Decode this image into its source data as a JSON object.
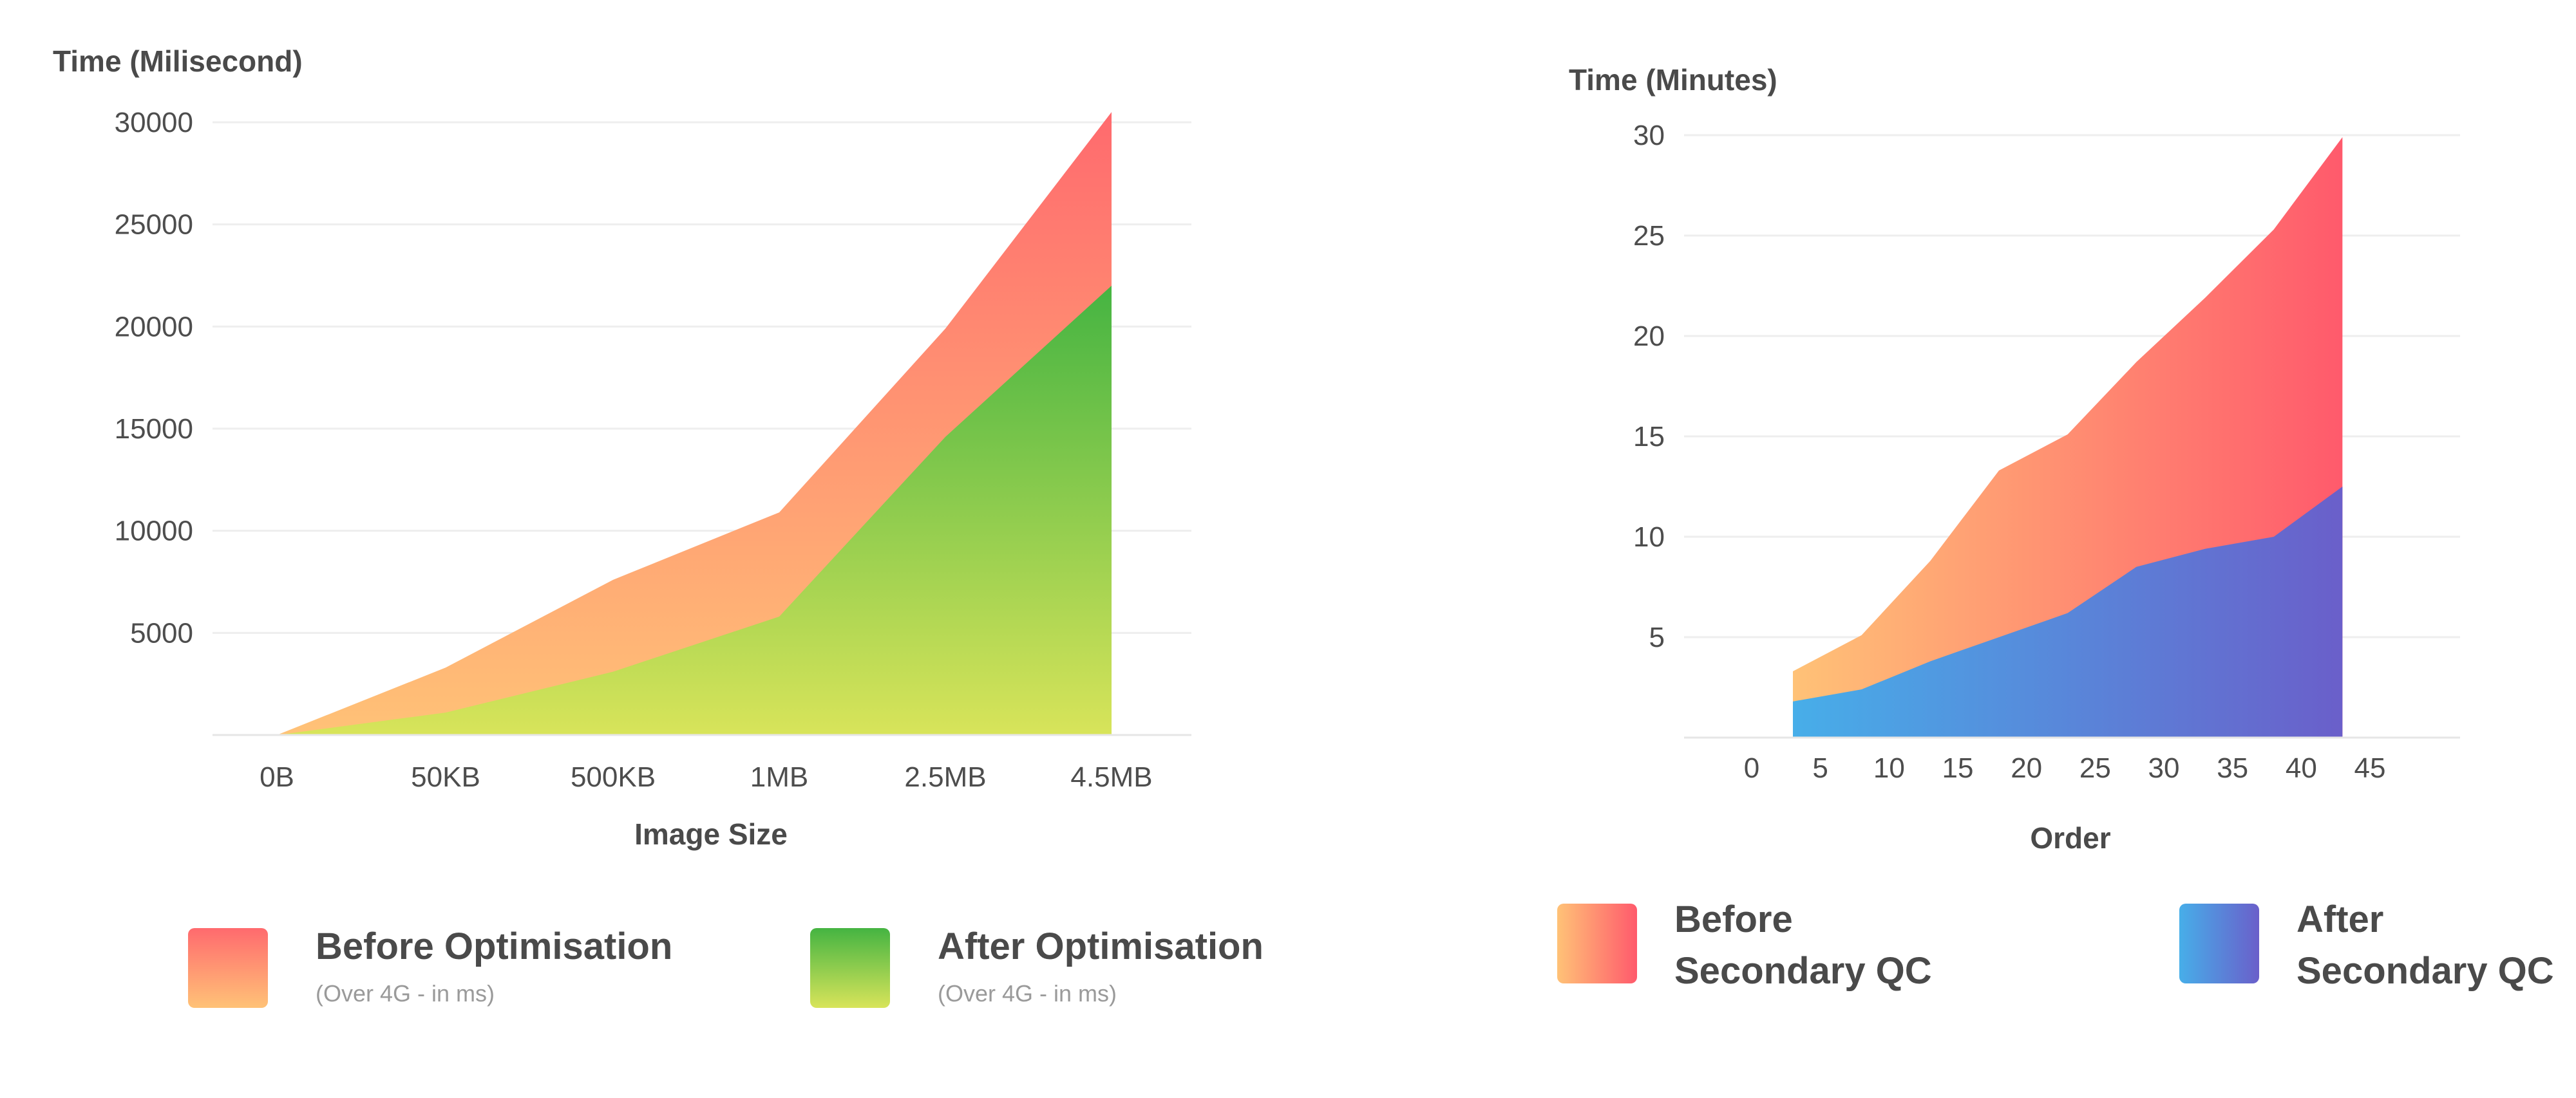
{
  "chart_data": [
    {
      "type": "area",
      "ylabel": "Time (Milisecond)",
      "xlabel": "Image Size",
      "categories": [
        "0B",
        "50KB",
        "500KB",
        "1MB",
        "2.5MB",
        "4.5MB"
      ],
      "y_ticks": [
        "5000",
        "10000",
        "15000",
        "20000",
        "25000",
        "30000"
      ],
      "ylim": [
        0,
        30000
      ],
      "grid": true,
      "series": [
        {
          "name": "Before Optimisation",
          "note": "(Over 4G - in ms)",
          "values": [
            0,
            3300,
            7600,
            10900,
            19900,
            30500
          ],
          "colors": [
            "#ff6a6e",
            "#ffc277"
          ]
        },
        {
          "name": "After Optimisation",
          "note": "(Over 4G - in ms)",
          "values": [
            0,
            1100,
            3100,
            5800,
            14600,
            22000
          ],
          "colors": [
            "#45b442",
            "#d8e45a"
          ]
        }
      ]
    },
    {
      "type": "area",
      "ylabel": "Time (Minutes)",
      "xlabel": "Order",
      "x_ticks": [
        "0",
        "5",
        "10",
        "15",
        "20",
        "25",
        "30",
        "35",
        "40",
        "45"
      ],
      "x": [
        3,
        8,
        13,
        18,
        23,
        28,
        33,
        38,
        43
      ],
      "y_ticks": [
        "5",
        "10",
        "15",
        "20",
        "25",
        "30"
      ],
      "xlim": [
        0,
        45
      ],
      "ylim": [
        0,
        30
      ],
      "grid": true,
      "series": [
        {
          "name": "Before Secondary QC",
          "name_lines": [
            "Before",
            "Secondary QC"
          ],
          "values": [
            3.3,
            5.1,
            8.8,
            13.3,
            15.1,
            18.7,
            21.9,
            25.3,
            29.9
          ],
          "colors": [
            "#ffc277",
            "#ff5a6c"
          ]
        },
        {
          "name": "After Secondary QC",
          "name_lines": [
            "After",
            "Secondary QC"
          ],
          "values": [
            1.8,
            2.4,
            3.8,
            5.0,
            6.2,
            8.5,
            9.4,
            10.0,
            12.5
          ],
          "colors": [
            "#47aee9",
            "#6a5fca"
          ]
        }
      ]
    }
  ]
}
